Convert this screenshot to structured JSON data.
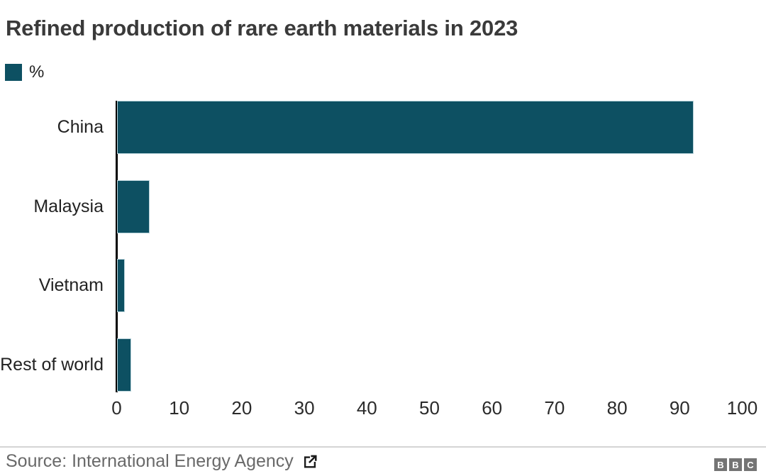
{
  "chart_data": {
    "type": "bar",
    "orientation": "horizontal",
    "title": "Refined production of rare earth materials in 2023",
    "legend_label": "%",
    "legend_position": "top-left",
    "categories": [
      "China",
      "Malaysia",
      "Vietnam",
      "Rest of world"
    ],
    "values": [
      92,
      5,
      1,
      2
    ],
    "unit": "%",
    "xlim": [
      0,
      100
    ],
    "x_ticks": [
      0,
      10,
      20,
      30,
      40,
      50,
      60,
      70,
      80,
      90,
      100
    ],
    "grid": false,
    "xlabel": "",
    "ylabel": ""
  },
  "footer": {
    "source_label": "Source: International Energy Agency",
    "external_link_icon": "external-link-icon",
    "logo_letters": [
      "B",
      "B",
      "C"
    ]
  },
  "colors": {
    "bar": "#0d5062",
    "bar_edge": "#b7d2da",
    "title_text": "#3a3a3a",
    "label_text": "#222222",
    "tick_text": "#2b2b2b",
    "axis": "#000000",
    "divider": "#d4d4d4",
    "source_text": "#696969",
    "bbc_gray": "#747474"
  }
}
